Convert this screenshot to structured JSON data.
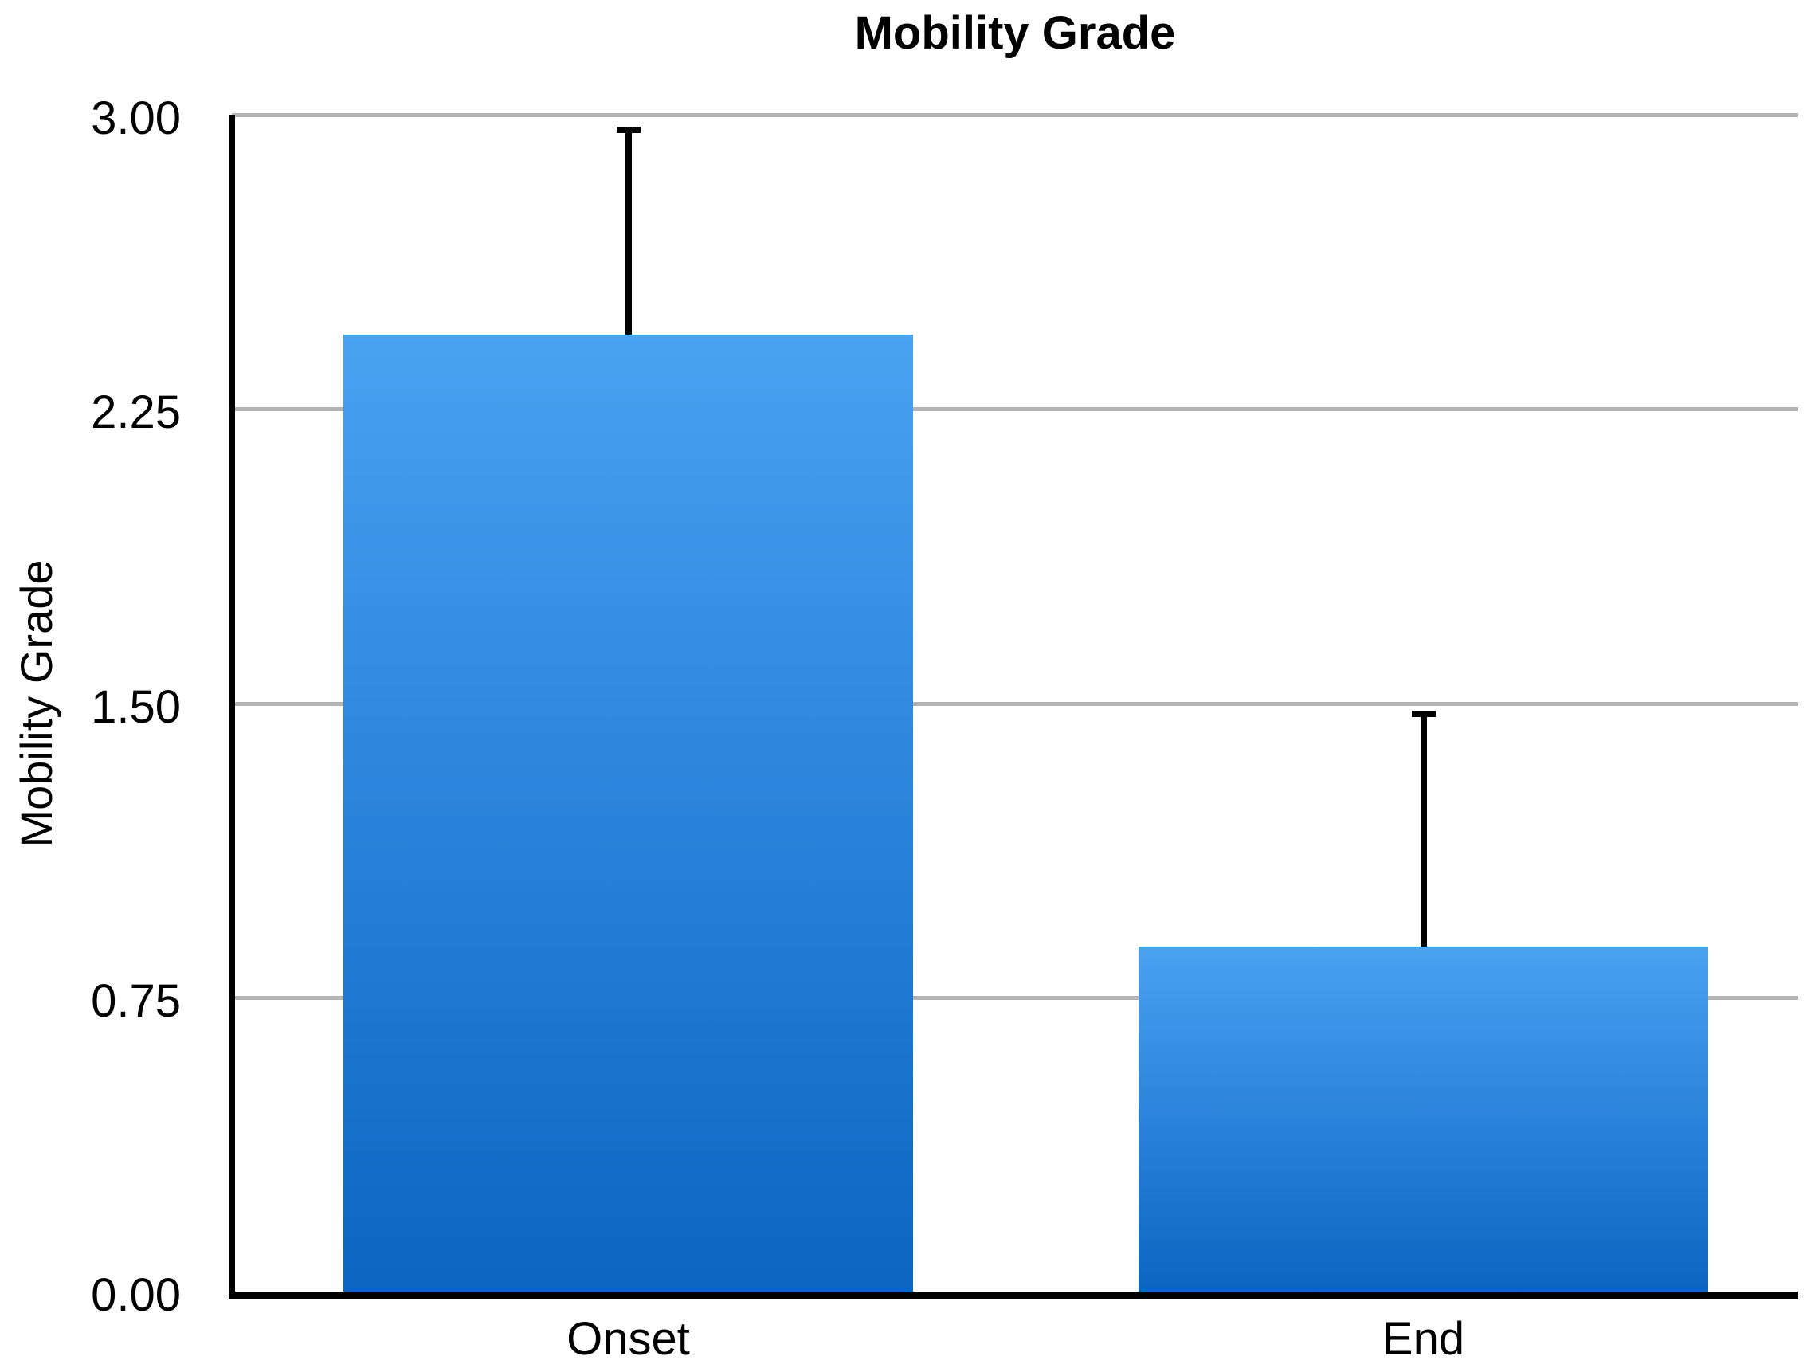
{
  "chart_data": {
    "type": "bar",
    "title": "Mobility Grade",
    "ylabel": "Mobility Grade",
    "xlabel": "",
    "categories": [
      "Onset",
      "End"
    ],
    "values": [
      2.44,
      0.88
    ],
    "errors_up": [
      0.53,
      0.6
    ],
    "ylim": [
      0,
      3
    ],
    "yticks": [
      {
        "label": "3.00",
        "value": 3.0
      },
      {
        "label": "2.25",
        "value": 2.25
      },
      {
        "label": "1.50",
        "value": 1.5
      },
      {
        "label": "0.75",
        "value": 0.75
      },
      {
        "label": "0.00",
        "value": 0.0
      }
    ],
    "grid": "horizontal",
    "legend": "none",
    "colors": {
      "bar_gradient_top": "#4BA1F2",
      "bar_gradient_bottom": "#0A66C2",
      "gridline": "#B3B3B3",
      "axis": "#000000",
      "text": "#000000"
    }
  }
}
